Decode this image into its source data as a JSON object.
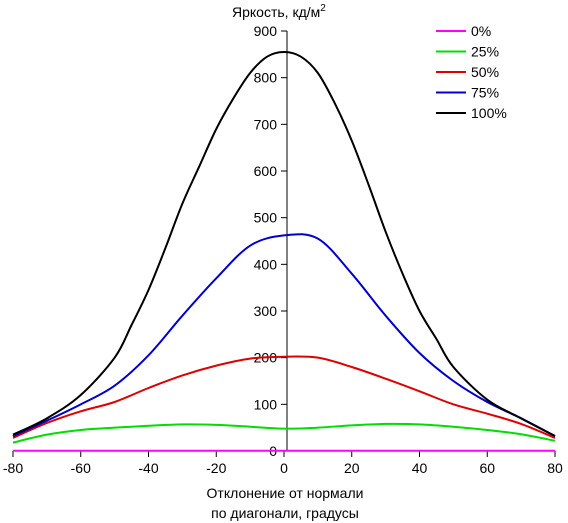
{
  "chart_data": {
    "type": "line",
    "ylabel": "Яркость, кд/м",
    "ylabel_superscript": "2",
    "xlabel_lines": [
      "Отклонение от нормали",
      "по диагонали, градусы"
    ],
    "xlim": [
      -80,
      80
    ],
    "ylim": [
      0,
      900
    ],
    "x_ticks": [
      -80,
      -60,
      -40,
      -20,
      0,
      20,
      40,
      60,
      80
    ],
    "y_ticks": [
      0,
      100,
      200,
      300,
      400,
      500,
      600,
      700,
      800,
      900
    ],
    "legend_position": "top-right",
    "grid": false,
    "series": [
      {
        "name": "0%",
        "color": "#ff00ff",
        "x": [
          -80,
          -60,
          -40,
          -20,
          0,
          20,
          40,
          60,
          80
        ],
        "y": [
          0.5,
          0.6,
          0.6,
          0.5,
          0.4,
          0.5,
          0.6,
          0.6,
          0.5
        ]
      },
      {
        "name": "25%",
        "color": "#00dd00",
        "x": [
          -80,
          -70,
          -60,
          -50,
          -40,
          -30,
          -20,
          -10,
          0,
          10,
          20,
          30,
          40,
          50,
          60,
          70,
          80
        ],
        "y": [
          18,
          35,
          45,
          50,
          54,
          57,
          56,
          52,
          48,
          50,
          55,
          58,
          57,
          52,
          45,
          36,
          22
        ]
      },
      {
        "name": "50%",
        "color": "#dd0000",
        "x": [
          -80,
          -70,
          -60,
          -50,
          -40,
          -30,
          -20,
          -10,
          0,
          10,
          20,
          30,
          40,
          50,
          60,
          70,
          80
        ],
        "y": [
          28,
          60,
          85,
          105,
          135,
          162,
          183,
          198,
          202,
          200,
          180,
          155,
          128,
          100,
          80,
          58,
          28
        ]
      },
      {
        "name": "75%",
        "color": "#0000cc",
        "x": [
          -80,
          -70,
          -60,
          -50,
          -40,
          -30,
          -20,
          -10,
          0,
          10,
          20,
          30,
          40,
          50,
          60,
          70,
          80
        ],
        "y": [
          32,
          65,
          100,
          140,
          205,
          290,
          370,
          440,
          462,
          455,
          380,
          290,
          210,
          150,
          105,
          70,
          32
        ]
      },
      {
        "name": "100%",
        "color": "#000000",
        "x": [
          -80,
          -70,
          -60,
          -50,
          -45,
          -40,
          -35,
          -30,
          -25,
          -20,
          -15,
          -10,
          -5,
          0,
          5,
          10,
          15,
          20,
          25,
          30,
          35,
          40,
          45,
          50,
          60,
          70,
          80
        ],
        "y": [
          35,
          70,
          120,
          200,
          270,
          345,
          435,
          530,
          610,
          690,
          755,
          810,
          845,
          855,
          845,
          810,
          745,
          665,
          570,
          470,
          380,
          300,
          240,
          180,
          110,
          70,
          32
        ]
      }
    ]
  }
}
